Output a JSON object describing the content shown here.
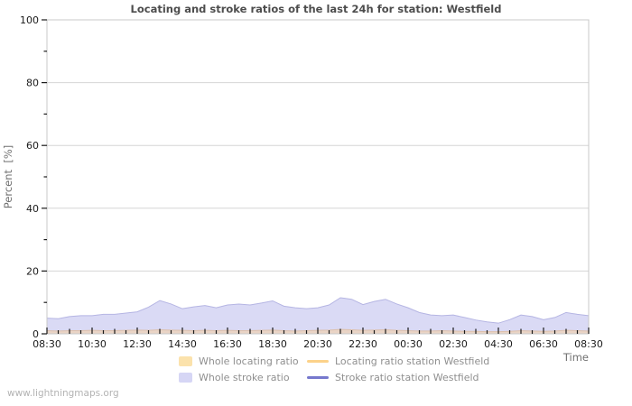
{
  "colors": {
    "frame": "#c8c8c8",
    "grid": "#d6d6d6",
    "tick": "#1a1a1a",
    "tick_label": "#1a1a1a",
    "axis_title": "#707070",
    "title_text": "#4d4d4d",
    "legend_text": "#8f8f8f",
    "watermark_text": "#b3b3b3",
    "stroke_area_fill": "#dadaf5",
    "stroke_area_edge": "#b5b5e3",
    "locating_area_fill": "#e9d4c6",
    "locating_area_edge": "#dcc0ac"
  },
  "watermark": "www.lightningmaps.org",
  "legend": {
    "items": [
      {
        "label": "Whole locating ratio",
        "swatch": "area",
        "color": "#fbe2ac"
      },
      {
        "label": "Whole stroke ratio",
        "swatch": "area",
        "color": "#d6d6f5"
      },
      {
        "label": "Locating ratio station Westfield",
        "swatch": "line",
        "color": "#fcd28a"
      },
      {
        "label": "Stroke ratio station Westfield",
        "swatch": "line",
        "color": "#7678cd"
      }
    ]
  },
  "chart_data": {
    "type": "area",
    "title": "Locating and stroke ratios of the last 24h for station: Westfield",
    "xlabel": "Time",
    "ylabel": "Percent  [%]",
    "ylim": [
      0,
      100
    ],
    "y_major": [
      0,
      20,
      40,
      60,
      80,
      100
    ],
    "y_minor": [
      10,
      30,
      50,
      70,
      90
    ],
    "grid": "horizontal major gridlines only",
    "legend_position": "bottom",
    "x": [
      "08:30",
      "09:00",
      "09:30",
      "10:00",
      "10:30",
      "11:00",
      "11:30",
      "12:00",
      "12:30",
      "13:00",
      "13:30",
      "14:00",
      "14:30",
      "15:00",
      "15:30",
      "16:00",
      "16:30",
      "17:00",
      "17:30",
      "18:00",
      "18:30",
      "19:00",
      "19:30",
      "20:00",
      "20:30",
      "21:00",
      "21:30",
      "22:00",
      "22:30",
      "23:00",
      "23:30",
      "00:00",
      "00:30",
      "01:00",
      "01:30",
      "02:00",
      "02:30",
      "03:00",
      "03:30",
      "04:00",
      "04:30",
      "05:00",
      "05:30",
      "06:00",
      "06:30",
      "07:00",
      "07:30",
      "08:00",
      "08:30"
    ],
    "x_tick_labels": [
      "08:30",
      "10:30",
      "12:30",
      "14:30",
      "16:30",
      "18:30",
      "20:30",
      "22:30",
      "00:30",
      "02:30",
      "04:30",
      "06:30",
      "08:30"
    ],
    "series": [
      {
        "name": "Whole stroke ratio",
        "type": "area",
        "color": "#dadaf5",
        "edge": "#b5b5e3",
        "values": [
          5.0,
          4.8,
          5.5,
          5.8,
          5.8,
          6.2,
          6.2,
          6.6,
          7.0,
          8.5,
          10.6,
          9.5,
          8.0,
          8.6,
          9.0,
          8.3,
          9.2,
          9.5,
          9.2,
          9.8,
          10.5,
          8.8,
          8.3,
          8.0,
          8.3,
          9.2,
          11.5,
          11.0,
          9.3,
          10.3,
          11.0,
          9.5,
          8.3,
          6.8,
          6.0,
          5.8,
          6.0,
          5.2,
          4.4,
          3.8,
          3.4,
          4.5,
          6.0,
          5.5,
          4.5,
          5.2,
          6.8,
          6.2,
          5.8
        ]
      },
      {
        "name": "Whole locating ratio",
        "type": "area",
        "color": "#e9d4c6",
        "edge": "#dcc0ac",
        "values": [
          1.0,
          0.9,
          1.0,
          1.0,
          1.1,
          1.0,
          1.0,
          1.1,
          1.2,
          1.1,
          1.3,
          1.2,
          1.1,
          1.0,
          1.1,
          1.0,
          1.1,
          1.0,
          1.0,
          1.1,
          1.2,
          1.0,
          0.9,
          1.0,
          1.1,
          1.2,
          1.4,
          1.3,
          1.1,
          1.2,
          1.3,
          1.1,
          1.0,
          0.9,
          0.9,
          1.0,
          0.9,
          0.8,
          0.8,
          0.7,
          0.7,
          0.8,
          1.0,
          0.9,
          0.8,
          0.9,
          1.1,
          1.0,
          0.9
        ]
      },
      {
        "name": "Locating ratio station Westfield",
        "type": "line",
        "color": "#fcd28a",
        "constant": 0
      },
      {
        "name": "Stroke ratio station Westfield",
        "type": "line",
        "color": "#7678cd",
        "constant": 0
      }
    ]
  }
}
